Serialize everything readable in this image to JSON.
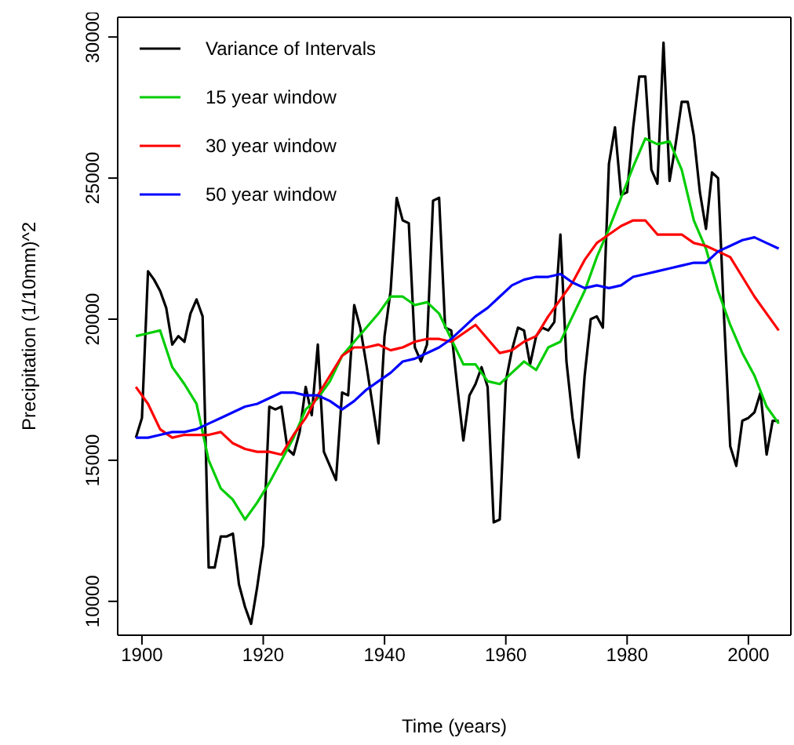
{
  "chart_data": {
    "type": "line",
    "xlabel": "Time (years)",
    "ylabel": "Precipitation (1/10mm)^2",
    "xlim": [
      1896,
      2007
    ],
    "ylim": [
      8800,
      30700
    ],
    "xticks": [
      1900,
      1920,
      1940,
      1960,
      1980,
      2000
    ],
    "yticks": [
      10000,
      15000,
      20000,
      25000,
      30000
    ],
    "legend": "top left",
    "marker": "none",
    "line_style": "solid",
    "series": [
      {
        "name": "Variance of Intervals",
        "color": "#000000",
        "x": [
          1899,
          1900,
          1901,
          1902,
          1903,
          1904,
          1905,
          1906,
          1907,
          1908,
          1909,
          1910,
          1911,
          1912,
          1913,
          1914,
          1915,
          1916,
          1917,
          1918,
          1919,
          1920,
          1921,
          1922,
          1923,
          1924,
          1925,
          1926,
          1927,
          1928,
          1929,
          1930,
          1931,
          1932,
          1933,
          1934,
          1935,
          1936,
          1937,
          1938,
          1939,
          1940,
          1941,
          1942,
          1943,
          1944,
          1945,
          1946,
          1947,
          1948,
          1949,
          1950,
          1951,
          1952,
          1953,
          1954,
          1955,
          1956,
          1957,
          1958,
          1959,
          1960,
          1961,
          1962,
          1963,
          1964,
          1965,
          1966,
          1967,
          1968,
          1969,
          1970,
          1971,
          1972,
          1973,
          1974,
          1975,
          1976,
          1977,
          1978,
          1979,
          1980,
          1981,
          1982,
          1983,
          1984,
          1985,
          1986,
          1987,
          1988,
          1989,
          1990,
          1991,
          1992,
          1993,
          1994,
          1995,
          1996,
          1997,
          1998,
          1999,
          2000,
          2001,
          2002,
          2003,
          2004,
          2005
        ],
        "values": [
          15800,
          16500,
          21700,
          21400,
          21000,
          20400,
          19100,
          19400,
          19200,
          20200,
          20700,
          20100,
          11200,
          11200,
          12300,
          12300,
          12400,
          10600,
          9800,
          9200,
          10500,
          12000,
          16900,
          16800,
          16900,
          15400,
          15200,
          16000,
          17600,
          16600,
          19100,
          15300,
          14800,
          14300,
          17400,
          17300,
          20500,
          19700,
          18400,
          17000,
          15600,
          19400,
          21000,
          24300,
          23500,
          23400,
          19000,
          18500,
          19100,
          24200,
          24300,
          19700,
          19600,
          17600,
          15700,
          17300,
          17700,
          18300,
          17600,
          12800,
          12900,
          17800,
          18900,
          19700,
          19600,
          18400,
          19400,
          19700,
          19600,
          19900,
          23000,
          18500,
          16500,
          15100,
          18000,
          20000,
          20100,
          19700,
          25500,
          26800,
          24400,
          24500,
          26800,
          28600,
          28600,
          25300,
          24800,
          29800,
          24900,
          26200,
          27700,
          27700,
          26500,
          24500,
          23200,
          25200,
          25000,
          20000,
          15500,
          14800,
          16400,
          16500,
          16700,
          17400,
          15200,
          16400,
          16400
        ]
      },
      {
        "name": "15 year window",
        "color": "#00cd00",
        "x": [
          1899,
          1901,
          1903,
          1905,
          1907,
          1909,
          1911,
          1913,
          1915,
          1917,
          1919,
          1921,
          1923,
          1925,
          1927,
          1929,
          1931,
          1933,
          1935,
          1937,
          1939,
          1941,
          1943,
          1945,
          1947,
          1949,
          1951,
          1953,
          1955,
          1957,
          1959,
          1961,
          1963,
          1965,
          1967,
          1969,
          1971,
          1973,
          1975,
          1977,
          1979,
          1981,
          1983,
          1985,
          1987,
          1989,
          1991,
          1993,
          1995,
          1997,
          1999,
          2001,
          2003,
          2005
        ],
        "values": [
          19400,
          19500,
          19600,
          18300,
          17700,
          17000,
          15000,
          14000,
          13600,
          12900,
          13500,
          14200,
          15000,
          15800,
          16800,
          17200,
          17800,
          18700,
          19200,
          19700,
          20200,
          20800,
          20800,
          20500,
          20600,
          20200,
          19300,
          18400,
          18400,
          17800,
          17700,
          18100,
          18500,
          18200,
          19000,
          19200,
          20100,
          21000,
          22200,
          23200,
          24300,
          25400,
          26400,
          26200,
          26300,
          25300,
          23500,
          22500,
          21000,
          19800,
          18800,
          18000,
          16900,
          16300
        ]
      },
      {
        "name": "30 year window",
        "color": "#ff0000",
        "x": [
          1899,
          1901,
          1903,
          1905,
          1907,
          1909,
          1911,
          1913,
          1915,
          1917,
          1919,
          1921,
          1923,
          1925,
          1927,
          1929,
          1931,
          1933,
          1935,
          1937,
          1939,
          1941,
          1943,
          1945,
          1947,
          1949,
          1951,
          1953,
          1955,
          1957,
          1959,
          1961,
          1963,
          1965,
          1967,
          1969,
          1971,
          1973,
          1975,
          1977,
          1979,
          1981,
          1983,
          1985,
          1987,
          1989,
          1991,
          1993,
          1995,
          1997,
          1999,
          2001,
          2003,
          2005
        ],
        "values": [
          17600,
          17000,
          16100,
          15800,
          15900,
          15900,
          15900,
          16000,
          15600,
          15400,
          15300,
          15300,
          15200,
          15900,
          16500,
          17300,
          18000,
          18700,
          19000,
          19000,
          19100,
          18900,
          19000,
          19200,
          19300,
          19300,
          19200,
          19500,
          19800,
          19300,
          18800,
          18900,
          19200,
          19400,
          20100,
          20700,
          21300,
          22100,
          22700,
          23000,
          23300,
          23500,
          23500,
          23000,
          23000,
          23000,
          22700,
          22600,
          22400,
          22200,
          21500,
          20800,
          20200,
          19600
        ]
      },
      {
        "name": "50 year window",
        "color": "#0000ff",
        "x": [
          1899,
          1901,
          1903,
          1905,
          1907,
          1909,
          1911,
          1913,
          1915,
          1917,
          1919,
          1921,
          1923,
          1925,
          1927,
          1929,
          1931,
          1933,
          1935,
          1937,
          1939,
          1941,
          1943,
          1945,
          1947,
          1949,
          1951,
          1953,
          1955,
          1957,
          1959,
          1961,
          1963,
          1965,
          1967,
          1969,
          1971,
          1973,
          1975,
          1977,
          1979,
          1981,
          1983,
          1985,
          1987,
          1989,
          1991,
          1993,
          1995,
          1997,
          1999,
          2001,
          2003,
          2005
        ],
        "values": [
          15800,
          15800,
          15900,
          16000,
          16000,
          16100,
          16300,
          16500,
          16700,
          16900,
          17000,
          17200,
          17400,
          17400,
          17300,
          17300,
          17100,
          16800,
          17100,
          17500,
          17800,
          18100,
          18500,
          18600,
          18800,
          19000,
          19300,
          19700,
          20100,
          20400,
          20800,
          21200,
          21400,
          21500,
          21500,
          21600,
          21300,
          21100,
          21200,
          21100,
          21200,
          21500,
          21600,
          21700,
          21800,
          21900,
          22000,
          22000,
          22400,
          22600,
          22800,
          22900,
          22700,
          22500
        ]
      }
    ]
  }
}
